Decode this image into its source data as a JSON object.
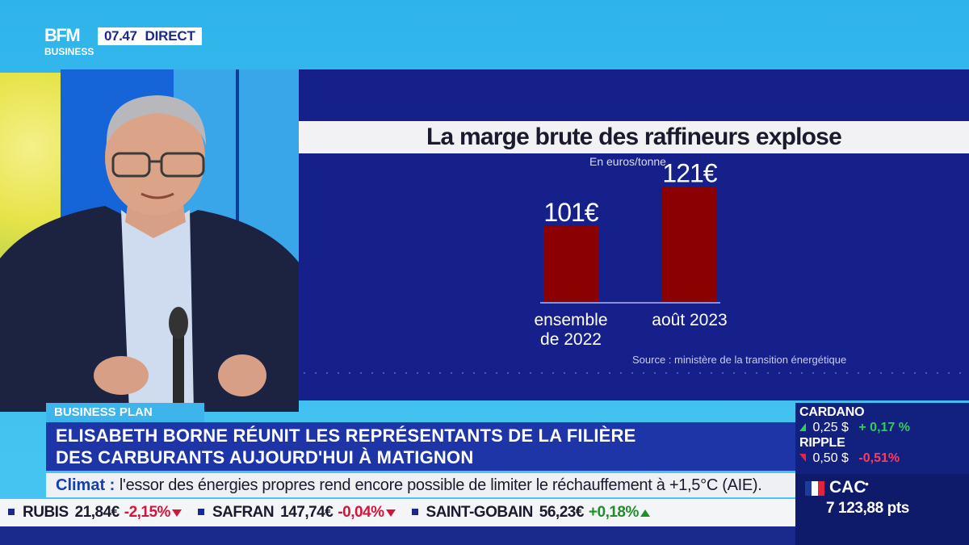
{
  "brand": {
    "logo_top": "BFM",
    "logo_bottom": "BUSINESS",
    "time": "07.47",
    "live_label": "DIRECT"
  },
  "chart_data": {
    "type": "bar",
    "title": "La marge brute des raffineurs explose",
    "subtitle": "En euros/tonne",
    "categories": [
      "ensemble de 2022",
      "août 2023"
    ],
    "category_lines": [
      [
        "ensemble",
        "de 2022"
      ],
      [
        "août 2023"
      ]
    ],
    "values": [
      101,
      121
    ],
    "value_labels": [
      "101€",
      "121€"
    ],
    "ylim": [
      0,
      130
    ],
    "bar_color": "#8b0000",
    "source": "Source : ministère de la transition énergétique",
    "grid": false
  },
  "lower_third": {
    "show_label": "BUSINESS PLAN",
    "headline_line1": "ELISABETH BORNE RÉUNIT LES REPRÉSENTANTS DE LA FILIÈRE",
    "headline_line2": "DES CARBURANTS AUJOURD'HUI À MATIGNON",
    "climat_label": "Climat :",
    "climat_text": "l'essor des énergies propres rend encore possible de limiter le réchauffement à +1,5°C (AIE)."
  },
  "ticker": [
    {
      "name": "RUBIS",
      "price": "21,84€",
      "change": "-2,15%",
      "direction": "down"
    },
    {
      "name": "SAFRAN",
      "price": "147,74€",
      "change": "-0,04%",
      "direction": "down"
    },
    {
      "name": "SAINT-GOBAIN",
      "price": "56,23€",
      "change": "+0,18%",
      "direction": "up"
    }
  ],
  "markets": {
    "crypto": [
      {
        "name": "CARDANO",
        "price": "0,25 $",
        "change": "+ 0,17 %",
        "direction": "up"
      },
      {
        "name": "RIPPLE",
        "price": "0,50 $",
        "change": "-0,51%",
        "direction": "down"
      }
    ],
    "index": {
      "name": "CAC",
      "value": "7 123,88 pts",
      "flag_colors": [
        "#1d3d9c",
        "#ffffff",
        "#e0243c"
      ]
    }
  }
}
